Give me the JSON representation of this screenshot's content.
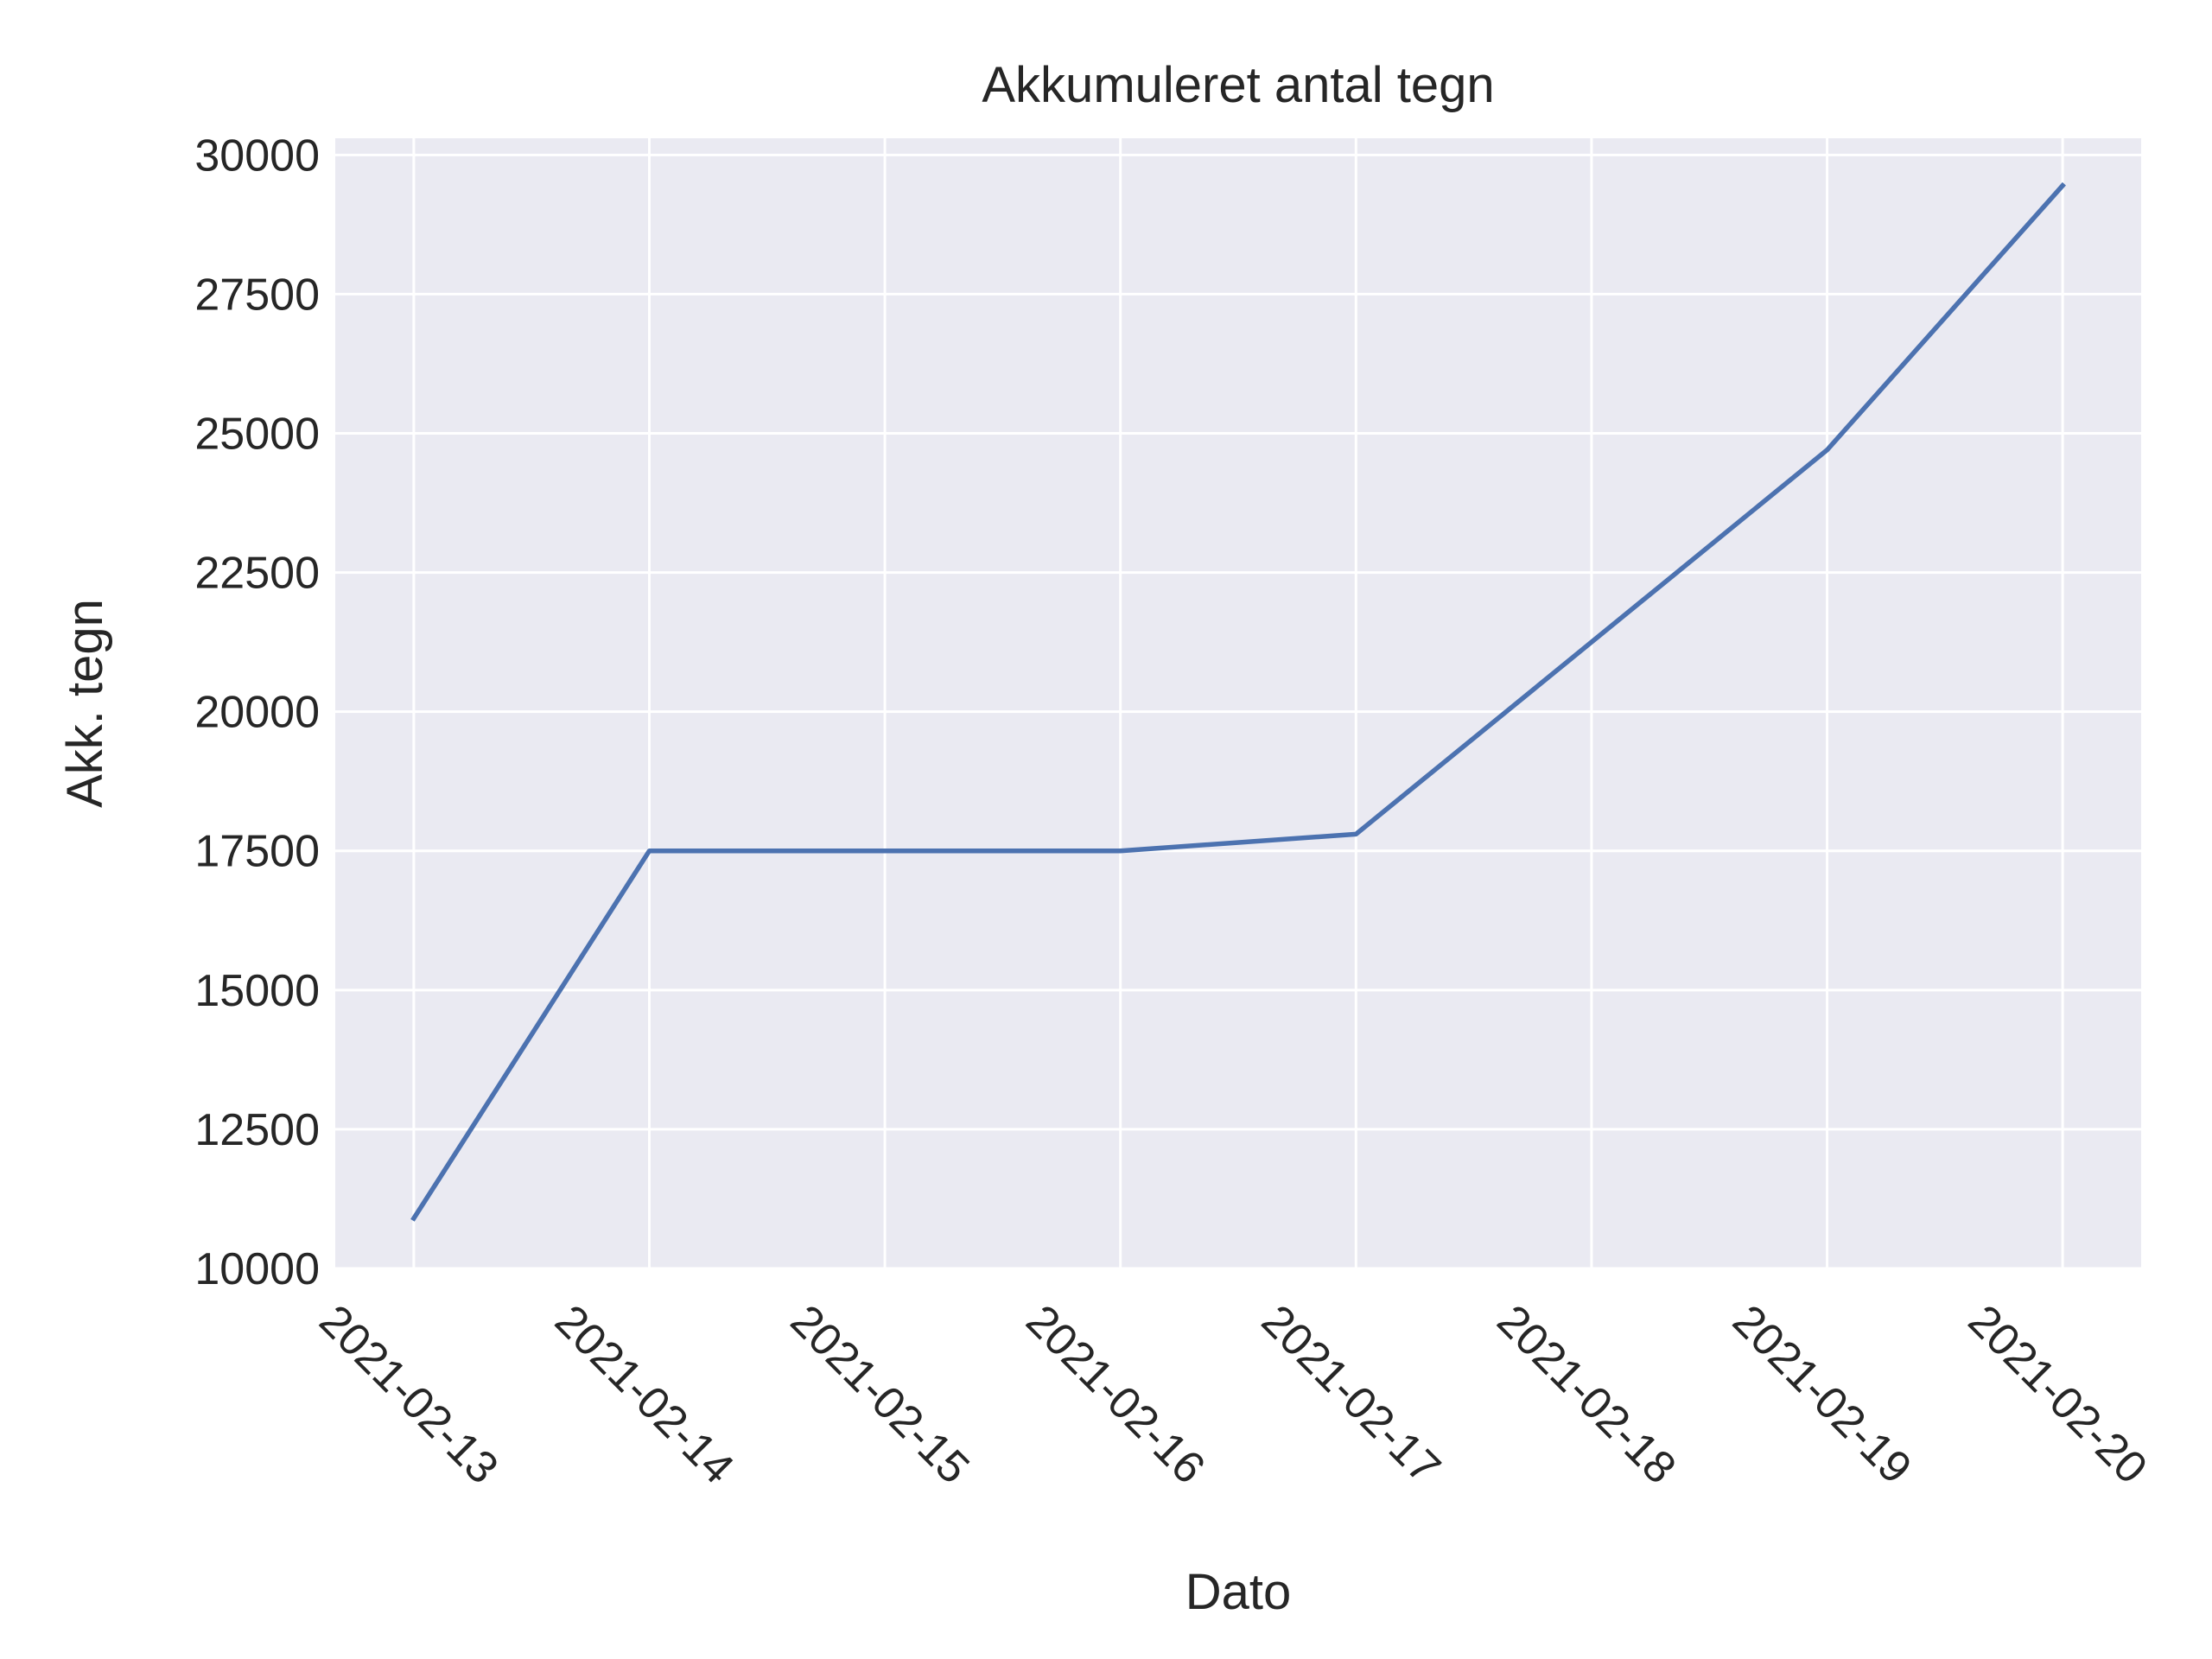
{
  "chart_data": {
    "type": "line",
    "title": "Akkumuleret antal tegn",
    "xlabel": "Dato",
    "ylabel": "Akk. tegn",
    "categories": [
      "2021-02-13",
      "2021-02-14",
      "2021-02-15",
      "2021-02-16",
      "2021-02-17",
      "2021-02-18",
      "2021-02-19",
      "2021-02-20"
    ],
    "series": [
      {
        "points": [
          {
            "x": "2021-02-13",
            "y": 10900
          },
          {
            "x": "2021-02-14",
            "y": 17500
          },
          {
            "x": "2021-02-16",
            "y": 17500
          },
          {
            "x": "2021-02-17",
            "y": 17800
          },
          {
            "x": "2021-02-19",
            "y": 24700
          },
          {
            "x": "2021-02-20",
            "y": 29450
          }
        ]
      }
    ],
    "xlim": [
      "2021-02-12T16:00",
      "2021-02-20T08:00"
    ],
    "ylim": [
      10000,
      30300
    ],
    "yticks": [
      "10000",
      "12500",
      "15000",
      "17500",
      "20000",
      "22500",
      "25000",
      "27500",
      "30000"
    ],
    "yticks_values": [
      10000,
      12500,
      15000,
      17500,
      20000,
      22500,
      25000,
      27500,
      30000
    ],
    "grid": true,
    "colors": {
      "line": "#4c72b0",
      "plot_background": "#eaeaf2",
      "grid": "#ffffff",
      "text": "#262626"
    }
  }
}
